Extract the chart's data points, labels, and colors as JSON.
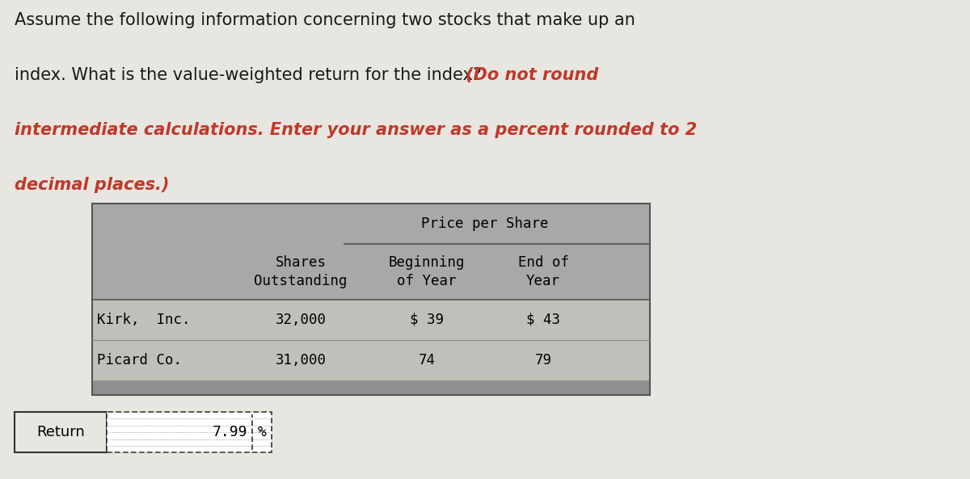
{
  "background_color": "#e8e6e0",
  "title_line1": "Assume the following information concerning two stocks that make up an",
  "title_line2_black": "index. What is the value-weighted return for the index? ",
  "title_line2_orange": "(Do not round",
  "title_line3": "intermediate calculations. Enter your answer as a percent rounded to 2",
  "title_line4": "decimal places.)",
  "title_color": "#1a1a1a",
  "highlight_color": "#c0392b",
  "table_header_bg": "#a8a8a8",
  "table_row_bg": "#c0bfba",
  "table_bottom_bg": "#909090",
  "col_header_price": "Price per Share",
  "col_header_shares": "Shares\nOutstanding",
  "col_header_begin": "Beginning\nof Year",
  "col_header_end": "End of\nYear",
  "row1_label": "Kirk,  Inc.",
  "row2_label": "Picard Co.",
  "row1_shares": "32,000",
  "row2_shares": "31,000",
  "row1_begin": "$ 39",
  "row2_begin": "74",
  "row1_end": "$ 43",
  "row2_end": "79",
  "return_label": "Return",
  "return_value": "7.99",
  "return_unit": "%"
}
